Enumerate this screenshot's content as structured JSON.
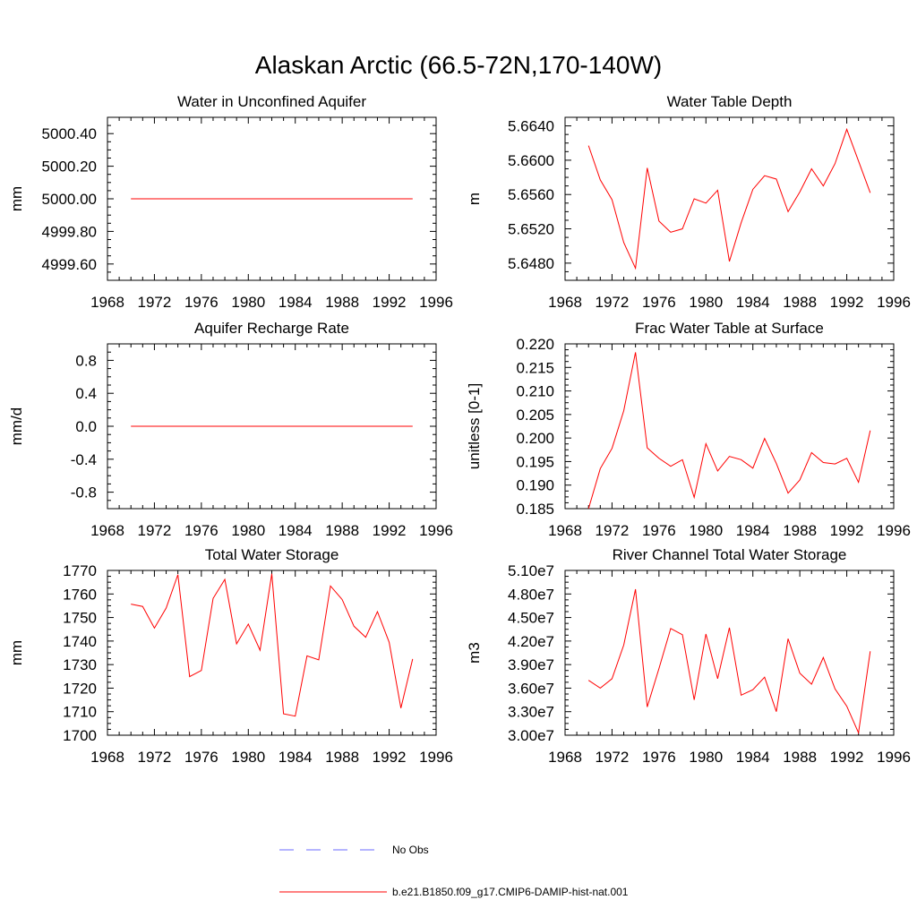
{
  "figure": {
    "title": "Alaskan Arctic (66.5-72N,170-140W)"
  },
  "colors": {
    "model_line": "#ff0000",
    "obs_line": "#6b6bff",
    "axis": "#000000"
  },
  "legend": {
    "placement": "bottom-center",
    "entries": [
      {
        "label": "No Obs",
        "style": "dashed",
        "color": "#6b6bff"
      },
      {
        "label": "b.e21.B1850.f09_g17.CMIP6-DAMIP-hist-nat.001",
        "style": "solid",
        "color": "#ff0000"
      }
    ]
  },
  "chart_data": [
    {
      "type": "line",
      "title": "Water in Unconfined Aquifer",
      "ylabel": "mm",
      "xlim": [
        1968,
        1996
      ],
      "ylim": [
        4999.5,
        5000.5
      ],
      "xticks": [
        1968,
        1972,
        1976,
        1980,
        1984,
        1988,
        1992,
        1996
      ],
      "yticks": [
        4999.6,
        4999.8,
        5000.0,
        5000.2,
        5000.4
      ],
      "ytick_labels": [
        "4999.60",
        "4999.80",
        "5000.00",
        "5000.20",
        "5000.40"
      ],
      "grid": false,
      "x": [
        1970,
        1971,
        1972,
        1973,
        1974,
        1975,
        1976,
        1977,
        1978,
        1979,
        1980,
        1981,
        1982,
        1983,
        1984,
        1985,
        1986,
        1987,
        1988,
        1989,
        1990,
        1991,
        1992,
        1993,
        1994
      ],
      "series": [
        {
          "values": [
            5000,
            5000,
            5000,
            5000,
            5000,
            5000,
            5000,
            5000,
            5000,
            5000,
            5000,
            5000,
            5000,
            5000,
            5000,
            5000,
            5000,
            5000,
            5000,
            5000,
            5000,
            5000,
            5000,
            5000,
            5000
          ]
        }
      ]
    },
    {
      "type": "line",
      "title": "Water Table Depth",
      "ylabel": "m",
      "xlim": [
        1968,
        1996
      ],
      "ylim": [
        5.646,
        5.665
      ],
      "xticks": [
        1968,
        1972,
        1976,
        1980,
        1984,
        1988,
        1992,
        1996
      ],
      "yticks": [
        5.648,
        5.652,
        5.656,
        5.66,
        5.664
      ],
      "ytick_labels": [
        "5.6480",
        "5.6520",
        "5.6560",
        "5.6600",
        "5.6640"
      ],
      "grid": false,
      "x": [
        1970,
        1971,
        1972,
        1973,
        1974,
        1975,
        1976,
        1977,
        1978,
        1979,
        1980,
        1981,
        1982,
        1983,
        1984,
        1985,
        1986,
        1987,
        1988,
        1989,
        1990,
        1991,
        1992,
        1993,
        1994
      ],
      "series": [
        {
          "values": [
            5.6617,
            5.6577,
            5.6554,
            5.6504,
            5.6474,
            5.6591,
            5.6529,
            5.6516,
            5.652,
            5.6555,
            5.655,
            5.6565,
            5.6482,
            5.6527,
            5.6566,
            5.6582,
            5.6578,
            5.654,
            5.6563,
            5.659,
            5.657,
            5.6596,
            5.6636,
            5.6599,
            5.6562
          ]
        }
      ]
    },
    {
      "type": "line",
      "title": "Aquifer Recharge Rate",
      "ylabel": "mm/d",
      "xlim": [
        1968,
        1996
      ],
      "ylim": [
        -1.0,
        1.0
      ],
      "xticks": [
        1968,
        1972,
        1976,
        1980,
        1984,
        1988,
        1992,
        1996
      ],
      "yticks": [
        -0.8,
        -0.4,
        0.0,
        0.4,
        0.8
      ],
      "ytick_labels": [
        "-0.8",
        "-0.4",
        "0.0",
        "0.4",
        "0.8"
      ],
      "grid": false,
      "x": [
        1970,
        1971,
        1972,
        1973,
        1974,
        1975,
        1976,
        1977,
        1978,
        1979,
        1980,
        1981,
        1982,
        1983,
        1984,
        1985,
        1986,
        1987,
        1988,
        1989,
        1990,
        1991,
        1992,
        1993,
        1994
      ],
      "series": [
        {
          "values": [
            0,
            0,
            0,
            0,
            0,
            0,
            0,
            0,
            0,
            0,
            0,
            0,
            0,
            0,
            0,
            0,
            0,
            0,
            0,
            0,
            0,
            0,
            0,
            0,
            0
          ]
        }
      ]
    },
    {
      "type": "line",
      "title": "Frac Water Table at Surface",
      "ylabel": "unitless [0-1]",
      "xlim": [
        1968,
        1996
      ],
      "ylim": [
        0.185,
        0.22
      ],
      "xticks": [
        1968,
        1972,
        1976,
        1980,
        1984,
        1988,
        1992,
        1996
      ],
      "yticks": [
        0.185,
        0.19,
        0.195,
        0.2,
        0.205,
        0.21,
        0.215,
        0.22
      ],
      "ytick_labels": [
        "0.185",
        "0.190",
        "0.195",
        "0.200",
        "0.205",
        "0.210",
        "0.215",
        "0.220"
      ],
      "grid": false,
      "x": [
        1970,
        1971,
        1972,
        1973,
        1974,
        1975,
        1976,
        1977,
        1978,
        1979,
        1980,
        1981,
        1982,
        1983,
        1984,
        1985,
        1986,
        1987,
        1988,
        1989,
        1990,
        1991,
        1992,
        1993,
        1994
      ],
      "series": [
        {
          "values": [
            0.185,
            0.1935,
            0.1978,
            0.2058,
            0.2182,
            0.1979,
            0.1957,
            0.194,
            0.1954,
            0.1874,
            0.1988,
            0.193,
            0.1961,
            0.1954,
            0.1936,
            0.1999,
            0.1946,
            0.1883,
            0.1911,
            0.1969,
            0.1948,
            0.1945,
            0.1957,
            0.1906,
            0.2016
          ]
        }
      ]
    },
    {
      "type": "line",
      "title": "Total Water Storage",
      "ylabel": "mm",
      "xlim": [
        1968,
        1996
      ],
      "ylim": [
        1700,
        1770
      ],
      "xticks": [
        1968,
        1972,
        1976,
        1980,
        1984,
        1988,
        1992,
        1996
      ],
      "yticks": [
        1700,
        1710,
        1720,
        1730,
        1740,
        1750,
        1760,
        1770
      ],
      "ytick_labels": [
        "1700",
        "1710",
        "1720",
        "1730",
        "1740",
        "1750",
        "1760",
        "1770"
      ],
      "grid": false,
      "x": [
        1970,
        1971,
        1972,
        1973,
        1974,
        1975,
        1976,
        1977,
        1978,
        1979,
        1980,
        1981,
        1982,
        1983,
        1984,
        1985,
        1986,
        1987,
        1988,
        1989,
        1990,
        1991,
        1992,
        1993,
        1994
      ],
      "series": [
        {
          "values": [
            1755.7,
            1754.7,
            1745.5,
            1754.0,
            1768.2,
            1724.9,
            1727.5,
            1758.1,
            1766.2,
            1738.8,
            1747.2,
            1736.1,
            1768.6,
            1709.1,
            1708.1,
            1733.7,
            1732.0,
            1763.4,
            1757.6,
            1746.3,
            1741.6,
            1752.5,
            1739.5,
            1711.5,
            1732.4
          ]
        }
      ]
    },
    {
      "type": "line",
      "title": "River Channel Total Water Storage",
      "ylabel": "m3",
      "xlim": [
        1968,
        1996
      ],
      "ylim": [
        30000000,
        51000000
      ],
      "xticks": [
        1968,
        1972,
        1976,
        1980,
        1984,
        1988,
        1992,
        1996
      ],
      "yticks": [
        30000000,
        33000000,
        36000000,
        39000000,
        42000000,
        45000000,
        48000000,
        51000000
      ],
      "ytick_labels": [
        "3.00e7",
        "3.30e7",
        "3.60e7",
        "3.90e7",
        "4.20e7",
        "4.50e7",
        "4.80e7",
        "5.10e7"
      ],
      "grid": false,
      "x": [
        1970,
        1971,
        1972,
        1973,
        1974,
        1975,
        1976,
        1977,
        1978,
        1979,
        1980,
        1981,
        1982,
        1983,
        1984,
        1985,
        1986,
        1987,
        1988,
        1989,
        1990,
        1991,
        1992,
        1993,
        1994
      ],
      "series": [
        {
          "values": [
            37000000,
            36000000,
            37200000,
            41500000,
            48600000,
            33600000,
            38500000,
            43600000,
            42800000,
            34500000,
            42900000,
            37200000,
            43700000,
            35100000,
            35800000,
            37400000,
            33000000,
            42300000,
            37900000,
            36500000,
            39900000,
            35900000,
            33700000,
            30300000,
            40700000
          ]
        }
      ]
    }
  ]
}
